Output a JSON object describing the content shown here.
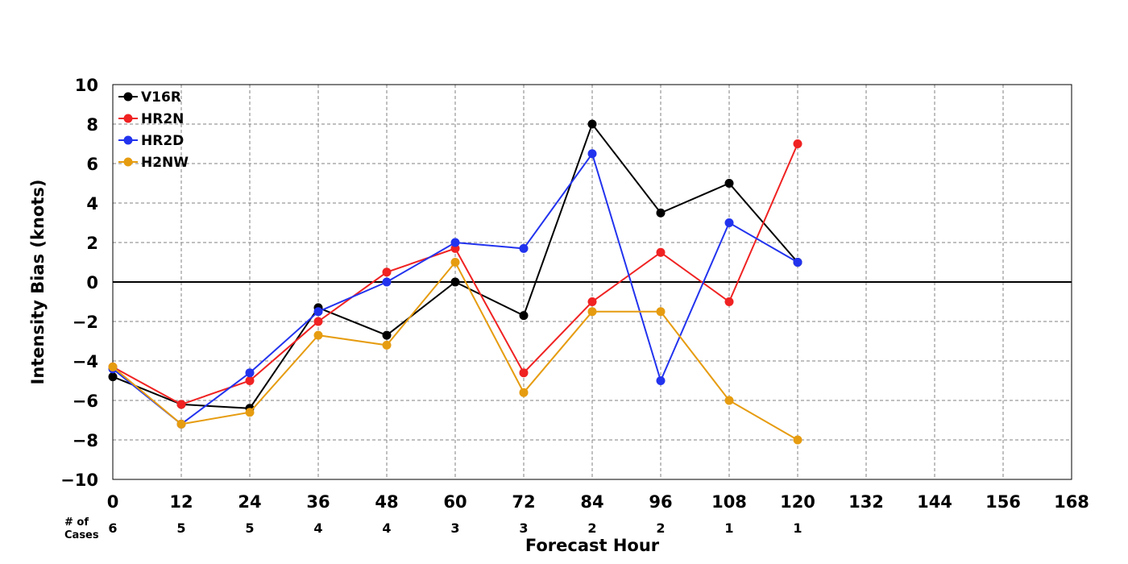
{
  "chart_data": {
    "type": "line",
    "title": "",
    "xlabel": "Forecast Hour",
    "ylabel": "Intensity Bias (knots)",
    "xlim": [
      0,
      168
    ],
    "ylim": [
      -10,
      10
    ],
    "x_ticks": [
      0,
      12,
      24,
      36,
      48,
      60,
      72,
      84,
      96,
      108,
      120,
      132,
      144,
      156,
      168
    ],
    "x_tick_labels": [
      "0",
      "12",
      "24",
      "36",
      "48",
      "60",
      "72",
      "84",
      "96",
      "108",
      "120",
      "132",
      "144",
      "156",
      "168"
    ],
    "y_ticks": [
      -10,
      -8,
      -6,
      -4,
      -2,
      0,
      2,
      4,
      6,
      8,
      10
    ],
    "y_tick_labels": [
      "−10",
      "−8",
      "−6",
      "−4",
      "−2",
      "0",
      "2",
      "4",
      "6",
      "8",
      "10"
    ],
    "grid": true,
    "grid_style": "dashed",
    "zero_line": true,
    "legend_position": "top-left",
    "x": [
      0,
      12,
      24,
      36,
      48,
      60,
      72,
      84,
      96,
      108,
      120
    ],
    "series": [
      {
        "name": "V16R",
        "color": "#000000",
        "values": [
          -4.8,
          -6.2,
          -6.4,
          -1.3,
          -2.7,
          0.0,
          -1.7,
          8.0,
          3.5,
          5.0,
          1.0
        ]
      },
      {
        "name": "HR2N",
        "color": "#f02222",
        "values": [
          -4.3,
          -6.2,
          -5.0,
          -2.0,
          0.5,
          1.7,
          -4.6,
          -1.0,
          1.5,
          -1.0,
          7.0
        ]
      },
      {
        "name": "HR2D",
        "color": "#2233ee",
        "values": [
          -4.4,
          -7.2,
          -4.6,
          -1.5,
          0.0,
          2.0,
          1.7,
          6.5,
          -5.0,
          3.0,
          1.0
        ]
      },
      {
        "name": "H2NW",
        "color": "#e69c10",
        "values": [
          -4.3,
          -7.2,
          -6.6,
          -2.7,
          -3.2,
          1.0,
          -5.6,
          -1.5,
          -1.5,
          -6.0,
          -8.0
        ]
      }
    ],
    "cases_label_line1": "# of",
    "cases_label_line2": "Cases",
    "cases": [
      6,
      5,
      5,
      4,
      4,
      3,
      3,
      2,
      2,
      1,
      1
    ]
  }
}
